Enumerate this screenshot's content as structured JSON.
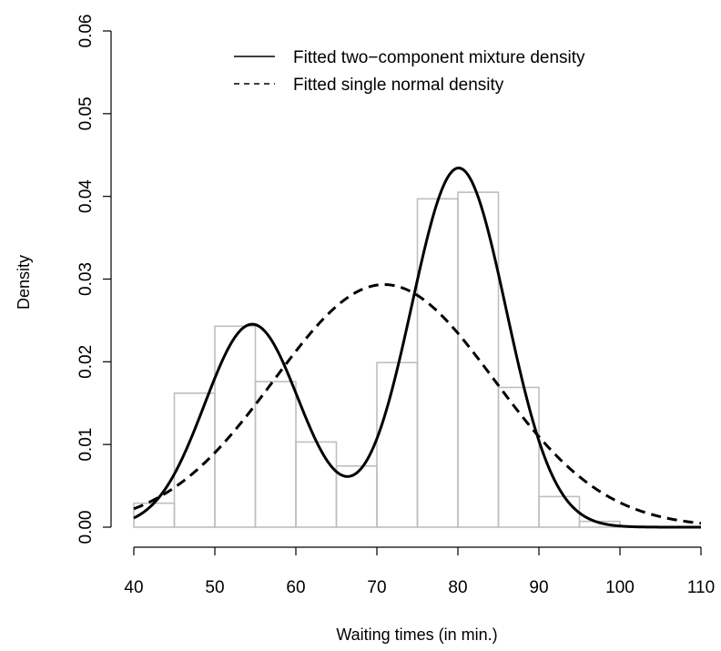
{
  "chart_data": {
    "type": "histogram",
    "title": "",
    "xlabel": "Waiting times (in min.)",
    "ylabel": "Density",
    "xlim": [
      40,
      110
    ],
    "ylim": [
      0,
      0.06
    ],
    "x_ticks": [
      "40",
      "50",
      "60",
      "70",
      "80",
      "90",
      "100",
      "110"
    ],
    "y_ticks": [
      "0.00",
      "0.01",
      "0.02",
      "0.03",
      "0.04",
      "0.05",
      "0.06"
    ],
    "grid": false,
    "legend_position": "top-right",
    "histogram": {
      "bins": [
        {
          "from": 40,
          "to": 45,
          "density": 0.0029
        },
        {
          "from": 45,
          "to": 50,
          "density": 0.0162
        },
        {
          "from": 50,
          "to": 55,
          "density": 0.0243
        },
        {
          "from": 55,
          "to": 60,
          "density": 0.0176
        },
        {
          "from": 60,
          "to": 65,
          "density": 0.0103
        },
        {
          "from": 65,
          "to": 70,
          "density": 0.0074
        },
        {
          "from": 70,
          "to": 75,
          "density": 0.0199
        },
        {
          "from": 75,
          "to": 80,
          "density": 0.0397
        },
        {
          "from": 80,
          "to": 85,
          "density": 0.0405
        },
        {
          "from": 85,
          "to": 90,
          "density": 0.0169
        },
        {
          "from": 90,
          "to": 95,
          "density": 0.0037
        },
        {
          "from": 95,
          "to": 100,
          "density": 0.0007
        }
      ],
      "color": "#bebebe"
    },
    "series": [
      {
        "name": "Fitted two−component mixture density",
        "line_style": "solid",
        "color": "#000000",
        "mixture": [
          {
            "weight": 0.361,
            "mean": 54.61,
            "sd": 5.87
          },
          {
            "weight": 0.639,
            "mean": 80.09,
            "sd": 5.87
          }
        ]
      },
      {
        "name": "Fitted single normal density",
        "line_style": "dashed",
        "color": "#000000",
        "mixture": [
          {
            "weight": 1.0,
            "mean": 70.9,
            "sd": 13.6
          }
        ]
      }
    ]
  }
}
